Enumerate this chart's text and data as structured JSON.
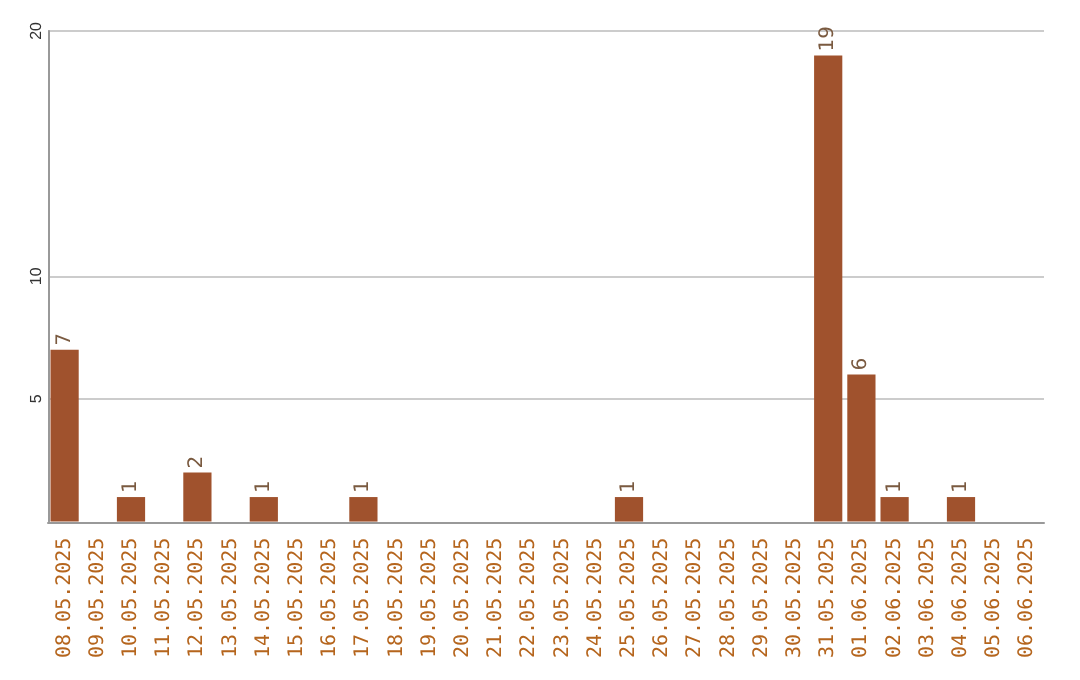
{
  "chart_data": {
    "type": "bar",
    "categories": [
      "08.05.2025",
      "09.05.2025",
      "10.05.2025",
      "11.05.2025",
      "12.05.2025",
      "13.05.2025",
      "14.05.2025",
      "15.05.2025",
      "16.05.2025",
      "17.05.2025",
      "18.05.2025",
      "19.05.2025",
      "20.05.2025",
      "21.05.2025",
      "22.05.2025",
      "23.05.2025",
      "24.05.2025",
      "25.05.2025",
      "26.05.2025",
      "27.05.2025",
      "28.05.2025",
      "29.05.2025",
      "30.05.2025",
      "31.05.2025",
      "01.06.2025",
      "02.06.2025",
      "03.06.2025",
      "04.06.2025",
      "05.06.2025",
      "06.06.2025"
    ],
    "values": [
      7,
      0,
      1,
      0,
      2,
      0,
      1,
      0,
      0,
      1,
      0,
      0,
      0,
      0,
      0,
      0,
      0,
      1,
      0,
      0,
      0,
      0,
      0,
      19,
      6,
      1,
      0,
      1,
      0,
      0
    ],
    "value_labels": [
      "7",
      null,
      "1",
      null,
      "2",
      null,
      "1",
      null,
      null,
      "1",
      null,
      null,
      null,
      null,
      null,
      null,
      null,
      "1",
      null,
      null,
      null,
      null,
      null,
      "19",
      "6",
      "1",
      null,
      "1",
      null,
      null
    ],
    "color": "#a0522d",
    "ylim": [
      0,
      20
    ],
    "yticks": [
      5,
      10,
      20
    ],
    "grid": "y"
  }
}
